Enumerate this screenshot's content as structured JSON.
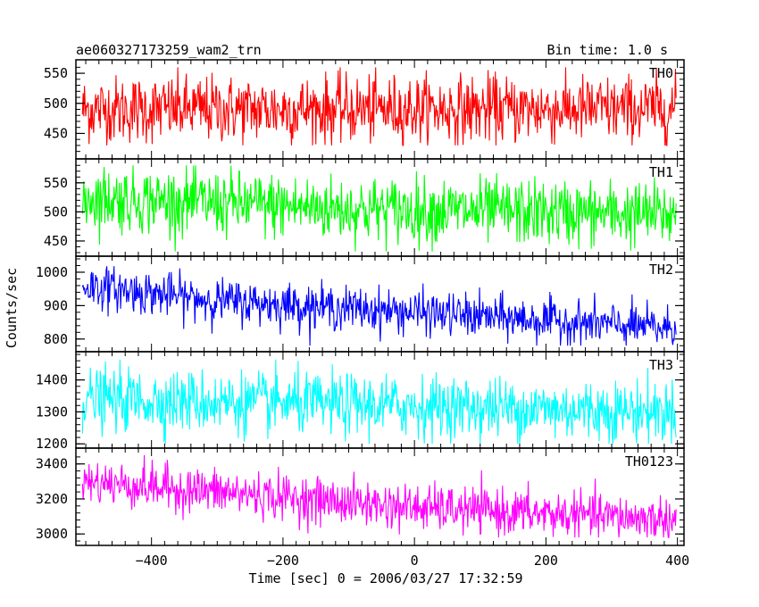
{
  "chart_data": {
    "type": "line",
    "title": "ae060327173259_wam2_trn",
    "bin_time_label": "Bin time: 1.0 s",
    "xlabel": "Time [sec] 0 = 2006/03/27 17:32:59",
    "ylabel": "Counts/sec",
    "xlim": [
      -515,
      410
    ],
    "x_ticks": [
      -400,
      -200,
      0,
      200,
      400
    ],
    "x_tick_labels": [
      "−400",
      "−200",
      "0",
      "200",
      "400"
    ],
    "x_range_data": [
      -505,
      398
    ],
    "grid": false,
    "panels": [
      {
        "name": "TH0",
        "color": "#ff0000",
        "ylim": [
          418,
          562
        ],
        "y_ticks": [
          450,
          500,
          550
        ],
        "trend": [
          [
            -505,
            490
          ],
          [
            398,
            490
          ]
        ],
        "noise_sd": 28,
        "clip": [
          430,
          560
        ]
      },
      {
        "name": "TH1",
        "color": "#00ff00",
        "ylim": [
          430,
          585
        ],
        "y_ticks": [
          450,
          500,
          550
        ],
        "trend": [
          [
            -505,
            525
          ],
          [
            -100,
            505
          ],
          [
            398,
            495
          ]
        ],
        "noise_sd": 28,
        "clip": [
          432,
          580
        ]
      },
      {
        "name": "TH2",
        "color": "#0000ff",
        "ylim": [
          770,
          1040
        ],
        "y_ticks": [
          800,
          900,
          1000
        ],
        "trend": [
          [
            -505,
            960
          ],
          [
            -300,
            915
          ],
          [
            0,
            880
          ],
          [
            398,
            830
          ]
        ],
        "noise_sd": 32,
        "clip": [
          780,
          1040
        ]
      },
      {
        "name": "TH3",
        "color": "#00ffff",
        "ylim": [
          1195,
          1480
        ],
        "y_ticks": [
          1200,
          1300,
          1400
        ],
        "trend": [
          [
            -505,
            1340
          ],
          [
            398,
            1300
          ]
        ],
        "noise_sd": 48,
        "clip": [
          1200,
          1470
        ]
      },
      {
        "name": "TH0123",
        "color": "#ff00ff",
        "ylim": [
          2955,
          3470
        ],
        "y_ticks": [
          3000,
          3200,
          3400
        ],
        "trend": [
          [
            -505,
            3300
          ],
          [
            -300,
            3240
          ],
          [
            0,
            3150
          ],
          [
            398,
            3080
          ]
        ],
        "noise_sd": 65,
        "clip": [
          2980,
          3460
        ]
      }
    ]
  }
}
